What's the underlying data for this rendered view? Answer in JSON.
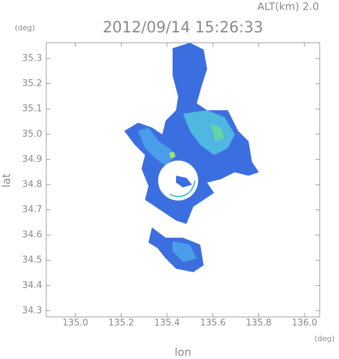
{
  "chart_data": {
    "type": "map",
    "title": "2012/09/14 15:26:33",
    "subtitle": "ALT(km) 2.0",
    "x_label": "lon",
    "y_label": "lat",
    "x_unit": "(deg)",
    "y_unit": "(deg)",
    "xlim": [
      134.873,
      136.066
    ],
    "ylim": [
      34.275,
      35.363
    ],
    "xticks": [
      {
        "value": 135,
        "label": "135.0"
      },
      135.2,
      135.4,
      135.6,
      135.8,
      {
        "value": 136,
        "label": "136.0"
      }
    ],
    "yticks": [
      34.3,
      34.4,
      34.5,
      34.6,
      34.7,
      34.8,
      34.9,
      {
        "value": 35,
        "label": "35.0"
      },
      35.1,
      35.2,
      35.3
    ]
  }
}
